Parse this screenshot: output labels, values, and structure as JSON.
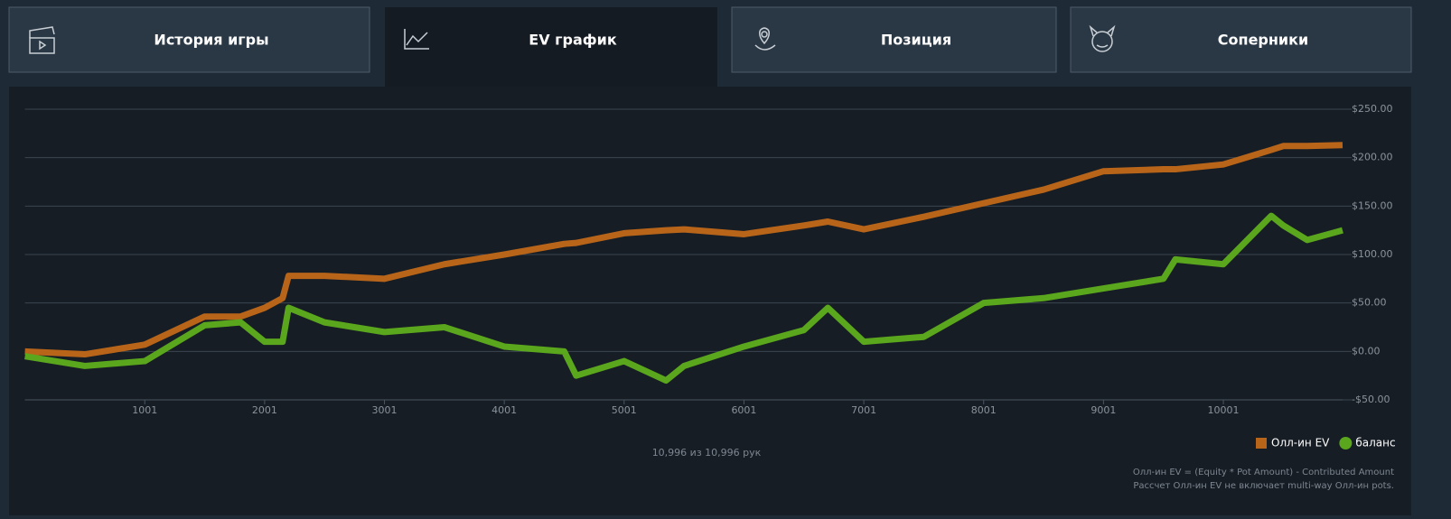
{
  "tabs": [
    "История игры",
    "EV график",
    "Позиция",
    "Соперники"
  ],
  "chart_data": {
    "type": "line",
    "x": [
      1,
      501,
      1001,
      1501,
      1801,
      2001,
      2151,
      2201,
      2501,
      3001,
      3501,
      4001,
      4501,
      4601,
      5001,
      5351,
      5501,
      6001,
      6501,
      6701,
      7001,
      7501,
      8001,
      8501,
      9001,
      9501,
      9601,
      10001,
      10401,
      10501,
      10701,
      10996
    ],
    "series": [
      {
        "name": "Олл-ин EV",
        "color": "#b8651a",
        "values": [
          0,
          -3,
          7,
          36,
          36,
          45,
          55,
          78,
          78,
          75,
          90,
          100,
          111,
          112,
          122,
          125,
          126,
          121,
          130,
          134,
          126,
          139,
          153,
          167,
          186,
          188,
          188,
          193,
          208,
          212,
          212,
          213
        ]
      },
      {
        "name": "баланс",
        "color": "#5aa61c",
        "values": [
          -5,
          -15,
          -10,
          27,
          30,
          10,
          10,
          45,
          30,
          20,
          25,
          5,
          0,
          -25,
          -10,
          -30,
          -15,
          5,
          22,
          45,
          10,
          15,
          50,
          55,
          65,
          75,
          95,
          90,
          140,
          130,
          115,
          125
        ]
      }
    ],
    "xlim": [
      1,
      10996
    ],
    "xticks": [
      1001,
      2001,
      3001,
      4001,
      5001,
      6001,
      7001,
      8001,
      9001,
      10001
    ],
    "ylim": [
      -50,
      250
    ],
    "yticks": [
      {
        "value": -50,
        "label": "-$50.00"
      },
      {
        "value": 0,
        "label": "$0.00"
      },
      {
        "value": 50,
        "label": "$50.00"
      },
      {
        "value": 100,
        "label": "$100.00"
      },
      {
        "value": 150,
        "label": "$150.00"
      },
      {
        "value": 200,
        "label": "$200.00"
      },
      {
        "value": 250,
        "label": "$250.00"
      }
    ],
    "grid": true,
    "legend": "bottom-right",
    "footer": "10,996 из 10,996 рук",
    "notes": [
      "Олл-ин EV = (Equity * Pot Amount) - Contributed Amount",
      "Рассчет Олл-ин EV не включает multi-way Олл-ин pots."
    ]
  }
}
